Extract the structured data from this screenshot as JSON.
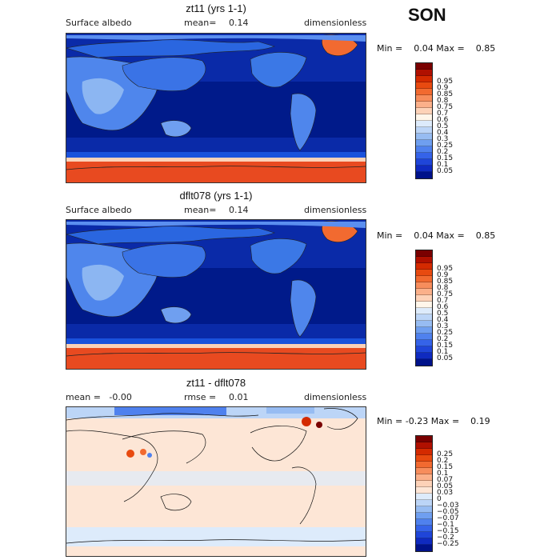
{
  "season": "SON",
  "panels": [
    {
      "title": "zt11 (yrs 1-1)",
      "left_label": "Surface albedo",
      "mean_label": "mean=",
      "mean_value": "0.14",
      "units": "dimensionless",
      "min_label": "Min =",
      "min_value": "0.04",
      "max_label": "Max =",
      "max_value": "0.85",
      "kind": "abs",
      "colorbar": {
        "colors": [
          "#7a0000",
          "#b01000",
          "#d42a00",
          "#e84a10",
          "#f26a30",
          "#f78d5c",
          "#fbb08a",
          "#fdd2b8",
          "#fff6ea",
          "#ddebfb",
          "#bcd5f7",
          "#97bcf2",
          "#6f9ff0",
          "#4f81ee",
          "#3563e9",
          "#1f45d9",
          "#0f2ac0",
          "#00128a"
        ],
        "labels": [
          "0.95",
          "0.9",
          "0.85",
          "0.8",
          "0.75",
          "0.7",
          "0.6",
          "0.5",
          "0.4",
          "0.3",
          "0.25",
          "0.2",
          "0.15",
          "0.1",
          "0.05"
        ]
      }
    },
    {
      "title": "dflt078 (yrs 1-1)",
      "left_label": "Surface albedo",
      "mean_label": "mean=",
      "mean_value": "0.14",
      "units": "dimensionless",
      "min_label": "Min =",
      "min_value": "0.04",
      "max_label": "Max =",
      "max_value": "0.85",
      "kind": "abs",
      "colorbar": {
        "colors": [
          "#7a0000",
          "#b01000",
          "#d42a00",
          "#e84a10",
          "#f26a30",
          "#f78d5c",
          "#fbb08a",
          "#fdd2b8",
          "#fff6ea",
          "#ddebfb",
          "#bcd5f7",
          "#97bcf2",
          "#6f9ff0",
          "#4f81ee",
          "#3563e9",
          "#1f45d9",
          "#0f2ac0",
          "#00128a"
        ],
        "labels": [
          "0.95",
          "0.9",
          "0.85",
          "0.8",
          "0.75",
          "0.7",
          "0.6",
          "0.5",
          "0.4",
          "0.3",
          "0.25",
          "0.2",
          "0.15",
          "0.1",
          "0.05"
        ]
      }
    },
    {
      "title": "zt11 - dflt078",
      "left_label": "mean =   -0.00",
      "mean_label": "rmse =",
      "mean_value": "0.01",
      "units": "dimensionless",
      "min_label": "Min =",
      "min_value": "-0.23",
      "max_label": "Max =",
      "max_value": "0.19",
      "kind": "diff",
      "colorbar": {
        "colors": [
          "#7a0000",
          "#b01000",
          "#d42a00",
          "#e84a10",
          "#f26a30",
          "#f78d5c",
          "#fbb08a",
          "#fdd2b8",
          "#fde6d6",
          "#ddebfb",
          "#bcd5f7",
          "#97bcf2",
          "#6f9ff0",
          "#4f81ee",
          "#3563e9",
          "#1f45d9",
          "#0f2ac0",
          "#00128a"
        ],
        "labels": [
          "0.25",
          "0.2",
          "0.15",
          "0.1",
          "0.07",
          "0.05",
          "0.03",
          "0",
          "-0.03",
          "-0.05",
          "-0.07",
          "-0.1",
          "-0.15",
          "-0.2",
          "-0.25"
        ]
      }
    }
  ]
}
